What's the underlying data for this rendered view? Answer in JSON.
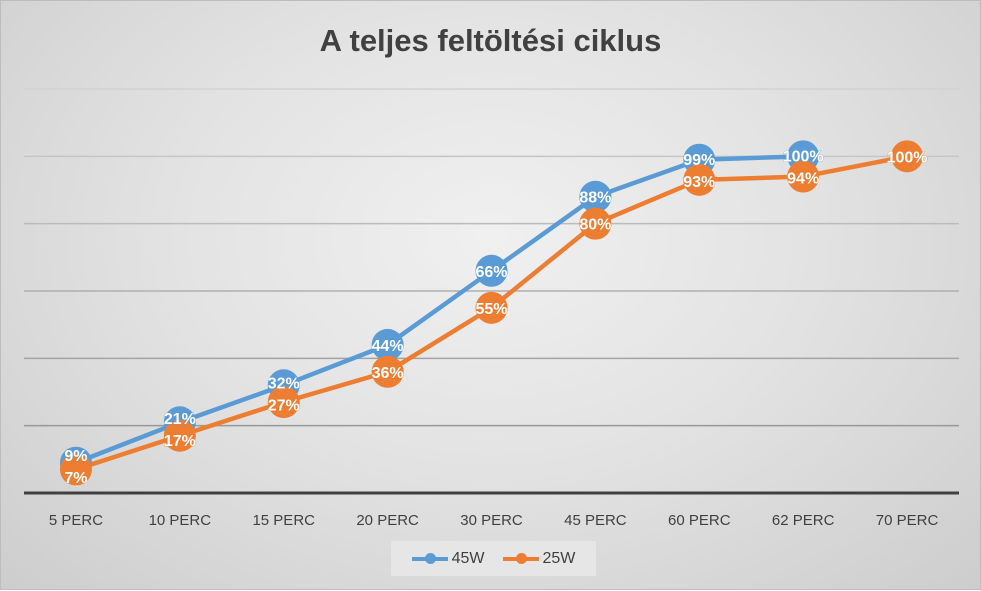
{
  "chart_data": {
    "type": "line",
    "title": "A teljes feltöltési ciklus",
    "categories": [
      "5 PERC",
      "10 PERC",
      "15 PERC",
      "20 PERC",
      "30 PERC",
      "45 PERC",
      "60 PERC",
      "62 PERC",
      "70 PERC"
    ],
    "ylim": [
      0,
      120
    ],
    "grid": true,
    "legend_position": "bottom",
    "series": [
      {
        "name": "45W",
        "color": "#5b9bd5",
        "values": [
          9,
          21,
          32,
          44,
          66,
          88,
          99,
          100,
          null
        ],
        "labels": [
          "9%",
          "21%",
          "32%",
          "44%",
          "66%",
          "88%",
          "99%",
          "100%",
          null
        ]
      },
      {
        "name": "25W",
        "color": "#ed7d31",
        "values": [
          7,
          17,
          27,
          36,
          55,
          80,
          93,
          94,
          100
        ],
        "labels": [
          "7%",
          "17%",
          "27%",
          "36%",
          "55%",
          "80%",
          "93%",
          "94%",
          "100%"
        ]
      }
    ]
  }
}
